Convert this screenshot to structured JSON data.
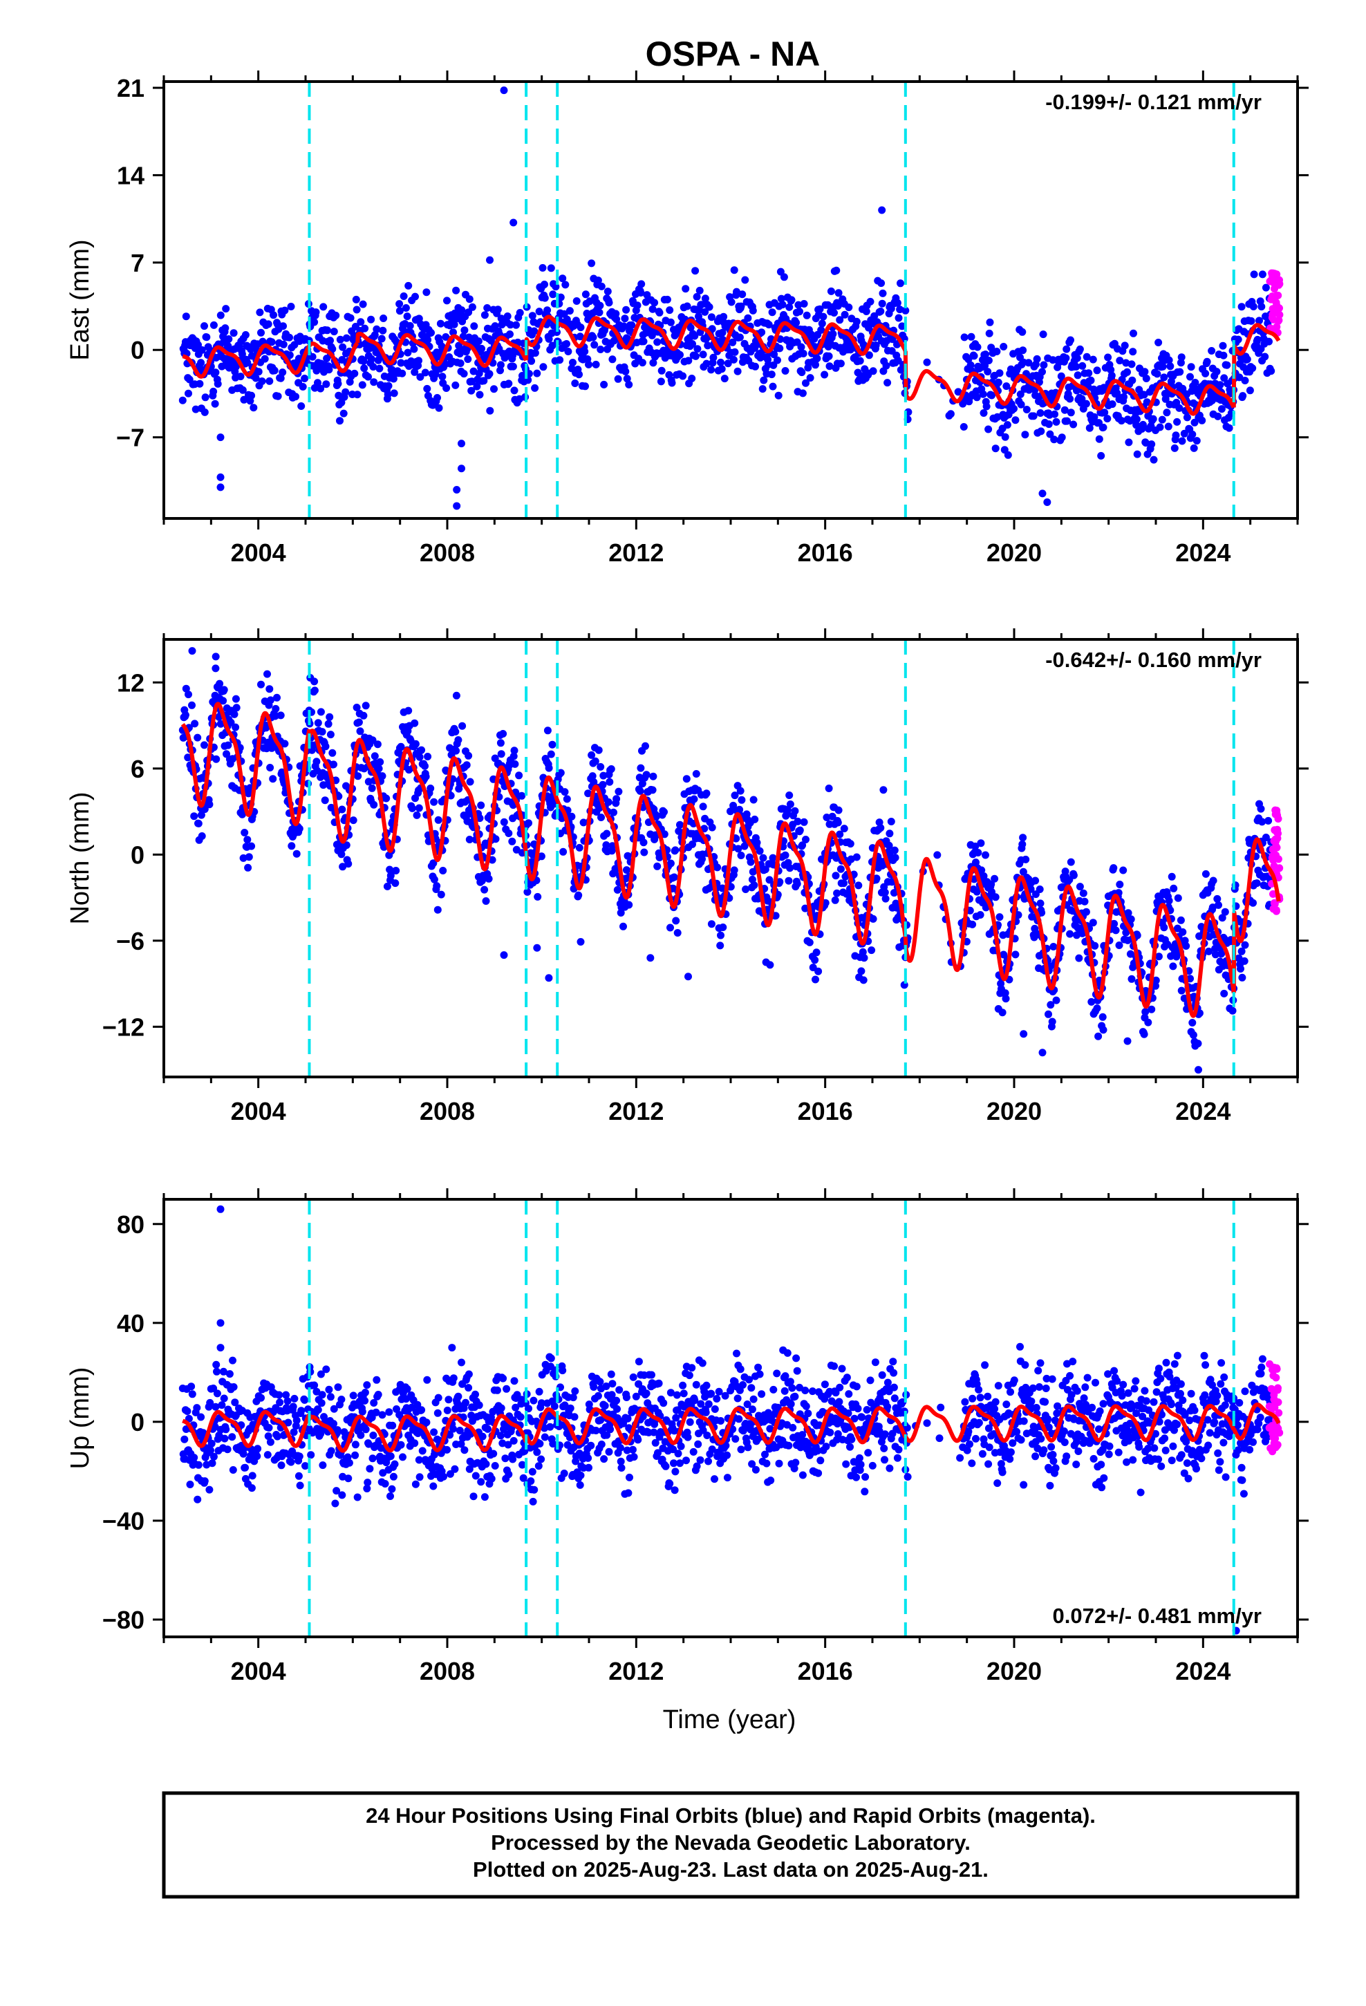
{
  "title": "OSPA - NA",
  "xlabel": "Time (year)",
  "footer": {
    "line1": "24 Hour Positions Using Final Orbits (blue) and Rapid Orbits (magenta).",
    "line2": "Processed by the Nevada Geodetic Laboratory.",
    "line3": "Plotted on 2025-Aug-23. Last data on 2025-Aug-21."
  },
  "colors": {
    "final_orbits": "#0000ff",
    "rapid_orbits": "#ff00ff",
    "model_fit": "#ff0000",
    "equipment_change": "#00e5ee"
  },
  "chart_data": [
    {
      "type": "scatter",
      "ylabel": "East (mm)",
      "rate": "-0.199+/- 0.121 mm/yr",
      "xlim": [
        2002.0,
        2026.0
      ],
      "ylim": [
        -13.5,
        21.5
      ],
      "xticks": [
        "2004",
        "2008",
        "2012",
        "2016",
        "2020",
        "2024"
      ],
      "yticks": [
        "-7",
        "0",
        "7",
        "14",
        "21"
      ],
      "grid": false,
      "events": [
        2005.08,
        2009.67,
        2010.33,
        2017.7,
        2024.65
      ],
      "fit_segments": [
        {
          "x0": 2002.4,
          "x1": 2006.1,
          "offset": -0.9,
          "slope": 0.15,
          "amp": 1.0
        },
        {
          "x0": 2006.1,
          "x1": 2009.67,
          "offset": 0.3,
          "slope": -0.1,
          "amp": 1.0
        },
        {
          "x0": 2009.67,
          "x1": 2017.7,
          "offset": 1.7,
          "slope": -0.1,
          "amp": 1.0
        },
        {
          "x0": 2017.7,
          "x1": 2024.65,
          "offset": -2.6,
          "slope": -0.2,
          "amp": 1.0
        },
        {
          "x0": 2024.65,
          "x1": 2025.6,
          "offset": 1.0,
          "slope": 0.0,
          "amp": 1.0
        }
      ],
      "outliers": [
        [
          2003.2,
          -10.2
        ],
        [
          2003.2,
          -11.0
        ],
        [
          2003.2,
          -7.0
        ],
        [
          2008.2,
          -11.2
        ],
        [
          2008.2,
          -12.5
        ],
        [
          2008.3,
          -9.5
        ],
        [
          2008.3,
          -7.5
        ],
        [
          2008.9,
          7.2
        ],
        [
          2009.2,
          20.8
        ],
        [
          2009.4,
          10.2
        ],
        [
          2017.2,
          11.2
        ],
        [
          2020.6,
          -11.5
        ],
        [
          2020.7,
          -12.2
        ]
      ],
      "rapid_points": {
        "x0": 2025.4,
        "x1": 2025.62,
        "ymin": 1.0,
        "ymax": 6.2
      }
    },
    {
      "type": "scatter",
      "ylabel": "North (mm)",
      "rate": "-0.642+/- 0.160 mm/yr",
      "xlim": [
        2002.0,
        2026.0
      ],
      "ylim": [
        -15.5,
        15.0
      ],
      "xticks": [
        "2004",
        "2008",
        "2012",
        "2016",
        "2020",
        "2024"
      ],
      "yticks": [
        "-12",
        "-6",
        "0",
        "6",
        "12"
      ],
      "grid": false,
      "events": [
        2005.08,
        2009.67,
        2010.33,
        2017.7,
        2024.65
      ],
      "fit_segments": [
        {
          "x0": 2002.4,
          "x1": 2005.08,
          "offset": 7.8,
          "slope": -0.64,
          "amp": 3.2
        },
        {
          "x0": 2005.08,
          "x1": 2009.67,
          "offset": 5.5,
          "slope": -0.64,
          "amp": 3.2
        },
        {
          "x0": 2009.67,
          "x1": 2017.7,
          "offset": 2.5,
          "slope": -0.64,
          "amp": 3.2
        },
        {
          "x0": 2017.7,
          "x1": 2024.65,
          "offset": -3.2,
          "slope": -0.64,
          "amp": 3.2
        },
        {
          "x0": 2024.65,
          "x1": 2025.6,
          "offset": -1.8,
          "slope": -0.64,
          "amp": 3.2
        }
      ],
      "outliers": [
        [
          2002.6,
          14.2
        ],
        [
          2003.1,
          13.8
        ],
        [
          2009.2,
          -7.0
        ],
        [
          2009.9,
          -6.5
        ],
        [
          2010.15,
          -8.6
        ],
        [
          2012.3,
          -7.2
        ],
        [
          2013.1,
          -8.5
        ],
        [
          2020.2,
          -12.5
        ],
        [
          2020.6,
          -13.8
        ],
        [
          2022.4,
          -13.0
        ],
        [
          2023.9,
          -15.0
        ]
      ],
      "rapid_points": {
        "x0": 2025.45,
        "x1": 2025.62,
        "ymin": -4.0,
        "ymax": 3.2
      }
    },
    {
      "type": "scatter",
      "ylabel": "Up (mm)",
      "rate": "0.072+/- 0.481 mm/yr",
      "xlim": [
        2002.0,
        2026.0
      ],
      "ylim": [
        -87.0,
        90.0
      ],
      "xticks": [
        "2004",
        "2008",
        "2012",
        "2016",
        "2020",
        "2024"
      ],
      "yticks": [
        "-80",
        "-40",
        "0",
        "40",
        "80"
      ],
      "grid": false,
      "events": [
        2005.08,
        2009.67,
        2010.33,
        2017.7,
        2024.65
      ],
      "fit_segments": [
        {
          "x0": 2002.4,
          "x1": 2005.08,
          "offset": -2.0,
          "slope": 0.0,
          "amp": 6.0
        },
        {
          "x0": 2005.08,
          "x1": 2009.67,
          "offset": -4.0,
          "slope": 0.1,
          "amp": 6.0
        },
        {
          "x0": 2009.67,
          "x1": 2017.7,
          "offset": -1.0,
          "slope": 0.07,
          "amp": 6.0
        },
        {
          "x0": 2017.7,
          "x1": 2024.65,
          "offset": 0.0,
          "slope": 0.07,
          "amp": 6.0
        },
        {
          "x0": 2024.65,
          "x1": 2025.6,
          "offset": 1.0,
          "slope": 0.0,
          "amp": 6.0
        }
      ],
      "outliers": [
        [
          2003.2,
          86.0
        ],
        [
          2003.2,
          40.0
        ],
        [
          2003.2,
          30.0
        ],
        [
          2006.1,
          -30.5
        ],
        [
          2006.3,
          -27.0
        ],
        [
          2008.1,
          30.0
        ],
        [
          2008.3,
          24.0
        ],
        [
          2020.2,
          -25.5
        ],
        [
          2024.7,
          -84.5
        ]
      ],
      "rapid_points": {
        "x0": 2025.4,
        "x1": 2025.62,
        "ymin": -13.0,
        "ymax": 23.5
      }
    }
  ]
}
